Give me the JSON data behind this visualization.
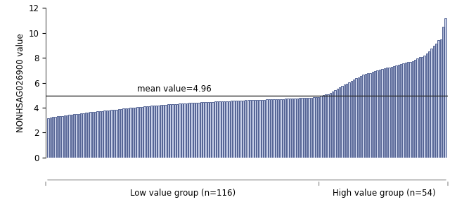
{
  "mean_value": 4.96,
  "n_low": 116,
  "n_high": 54,
  "total": 170,
  "ylim": [
    0,
    12
  ],
  "yticks": [
    0,
    2,
    4,
    6,
    8,
    10,
    12
  ],
  "ylabel": "NONHSAG026900 value",
  "low_group_label": "Low value group (n=116)",
  "high_group_label": "High value group (n=54)",
  "mean_label": "mean value=4.96",
  "bar_color": "#c8d0e8",
  "bar_edge_color": "#1a2f6e",
  "mean_line_color": "#2d2d2d",
  "background_color": "#ffffff",
  "low_values": [
    3.13,
    3.22,
    3.25,
    3.27,
    3.3,
    3.33,
    3.35,
    3.38,
    3.4,
    3.42,
    3.45,
    3.47,
    3.5,
    3.52,
    3.55,
    3.57,
    3.59,
    3.62,
    3.64,
    3.66,
    3.68,
    3.7,
    3.72,
    3.74,
    3.76,
    3.78,
    3.8,
    3.82,
    3.84,
    3.86,
    3.88,
    3.9,
    3.92,
    3.94,
    3.96,
    3.98,
    4.0,
    4.02,
    4.04,
    4.06,
    4.08,
    4.1,
    4.12,
    4.13,
    4.15,
    4.17,
    4.18,
    4.2,
    4.21,
    4.23,
    4.24,
    4.26,
    4.27,
    4.29,
    4.3,
    4.31,
    4.33,
    4.34,
    4.35,
    4.37,
    4.38,
    4.39,
    4.4,
    4.41,
    4.42,
    4.43,
    4.44,
    4.45,
    4.46,
    4.47,
    4.48,
    4.49,
    4.5,
    4.51,
    4.52,
    4.53,
    4.54,
    4.54,
    4.55,
    4.56,
    4.57,
    4.57,
    4.58,
    4.59,
    4.6,
    4.61,
    4.61,
    4.62,
    4.63,
    4.63,
    4.64,
    4.65,
    4.65,
    4.66,
    4.67,
    4.67,
    4.68,
    4.69,
    4.7,
    4.7,
    4.71,
    4.72,
    4.73,
    4.73,
    4.74,
    4.75,
    4.76,
    4.77,
    4.78,
    4.79,
    4.8,
    4.81,
    4.82,
    4.83,
    4.84,
    4.86
  ],
  "high_values": [
    4.97,
    5.0,
    5.05,
    5.1,
    5.2,
    5.3,
    5.4,
    5.55,
    5.65,
    5.75,
    5.85,
    5.95,
    6.05,
    6.15,
    6.25,
    6.35,
    6.45,
    6.55,
    6.65,
    6.7,
    6.75,
    6.8,
    6.9,
    6.95,
    7.0,
    7.05,
    7.1,
    7.15,
    7.2,
    7.25,
    7.3,
    7.35,
    7.4,
    7.45,
    7.5,
    7.55,
    7.6,
    7.65,
    7.7,
    7.75,
    7.85,
    7.95,
    8.05,
    8.1,
    8.2,
    8.35,
    8.55,
    8.75,
    8.95,
    9.15,
    9.4,
    9.5,
    10.5,
    11.2
  ]
}
